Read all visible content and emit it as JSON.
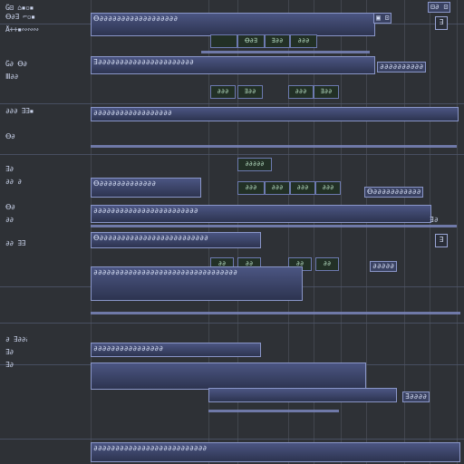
{
  "timeline": {
    "grid_columns": 9
  },
  "left_labels": [
    {
      "text": "Ĝ⊡ ⌂▪▫▪"
    },
    {
      "text": "Ꝋ∂∃ ⌐▫▪"
    },
    {
      "text": "Å∻∻▪∾∾∾"
    },
    {
      "text": "Ĝ∂ Ꝋ∂"
    },
    {
      "text": "Ⅲ∂∂"
    },
    {
      "text": "∂∂∂ ∃∃▪"
    },
    {
      "text": "Ꝋ∂"
    },
    {
      "text": "∃∂"
    },
    {
      "text": "∂∂ ∂"
    },
    {
      "text": "Ꝋ∂"
    },
    {
      "text": "∂∂"
    },
    {
      "text": "∂∂ ∃∃"
    },
    {
      "text": "∂ ∃∂∂∂"
    },
    {
      "text": "∃∂"
    },
    {
      "text": "∃∂"
    }
  ],
  "tracks": [
    {
      "bar_text": "Ꝋ∂∂∂∂∂∂∂∂∂∂∂∂∂∂∂∂∂∂",
      "cells": [
        "",
        "Ꝋ∂∃",
        "∃∂∂",
        "∂∂∂"
      ],
      "badge": "▣ ⊡"
    },
    {
      "bar_text": "∃∂∂∂∂∂∂∂∂∂∂∂∂∂∂∂∂∂∂∂∂∂∂",
      "cells": [
        "∂∂∂",
        "∃∂∂",
        "∂∂∂",
        "∃∂∂"
      ],
      "badge": "∂∂∂∂∂∂∂∂∂∂"
    },
    {
      "bar_text": "∂∂∂∂∂∂∂∂∂∂∂∂∂∂∂∂∂∂",
      "cells": [
        "∂∂∂∂∂",
        "",
        "",
        ""
      ],
      "badge": "∂∂∂∂∂∂"
    },
    {
      "bar_text": "Ꝋ∂∂∂∂∂∂∂∂∂∂∂∂∂",
      "cells": [
        "∂∂∂",
        "∂∂∂",
        "∂∂∂",
        "∂∂∂"
      ],
      "badge": "Ꝋ∂∂∂∂∂∂∂∂∂∂∂"
    },
    {
      "bar_text": "∂∂∂∂∂∂∂∂∂∂∂∂∂∂∂∂∂∂∂∂∂∂∂∂",
      "cells": [],
      "badge": "∃∂"
    },
    {
      "bar_text": "Ꝋ∂∂∂∂∂∂∂∂∂∂∂∂∂∂∂∂∂∂∂∂∂∂∂∂∂",
      "cells": [
        "∂∂",
        "∂∂",
        "∂∂",
        "∂∂"
      ],
      "badge": "∂∂∂∂∂"
    },
    {
      "bar_text": "∂∂∂∂∂∂∂∂∂∂∂∂∂∂∂∂∂∂∂∂∂∂∂∂∂∂∂∂∂∂∂∂∂",
      "cells": [],
      "badge": "∃∂∂"
    },
    {
      "bar_text": "∂∂∂∂∂∂∂∂∂∂∂∂∂∂∂∂",
      "cells": [],
      "badge": "∃∂∂∂∂"
    },
    {
      "bar_text": "∂∂∂∂∂∂∂∂∂∂∂∂∂∂∂∂∂∂∂∂∂∂∂∂∂∂",
      "cells": [],
      "badge": ""
    }
  ],
  "header": {
    "top_right_button": "⊟∂ ⊡",
    "corner_handle": "∃"
  },
  "colors": {
    "background": "#2e3136",
    "bar": "#4b5582",
    "bar_border": "#8a96c8",
    "cell_fill": "#223026"
  },
  "icons": {
    "scroll_handle": "resize-handle-icon"
  }
}
